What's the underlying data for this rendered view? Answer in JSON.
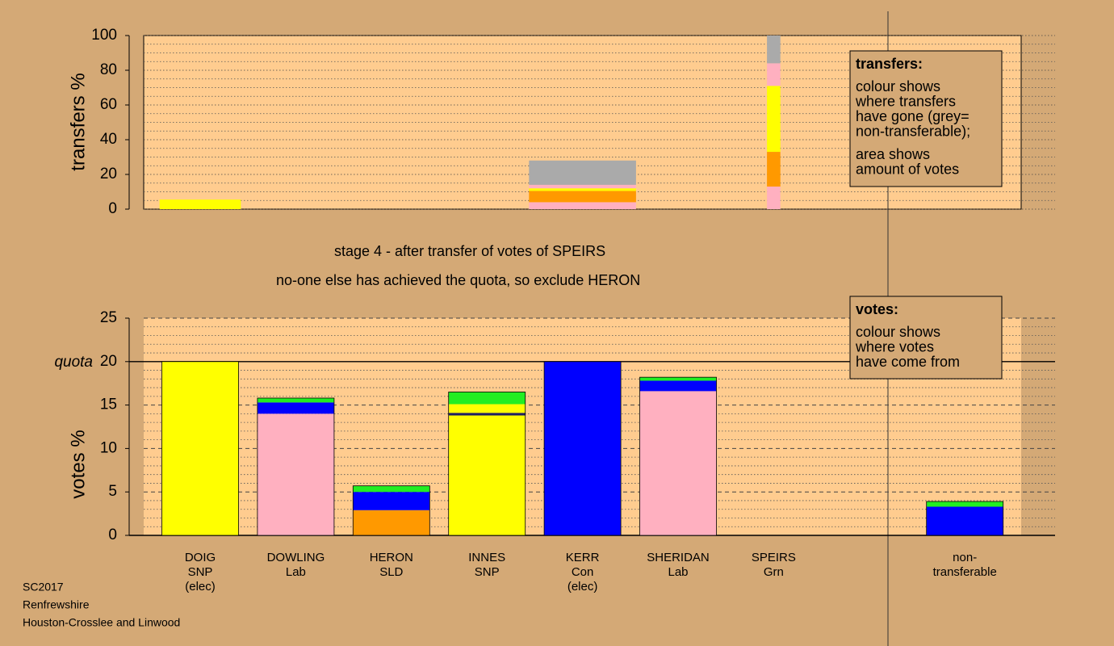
{
  "chart_data": [
    {
      "type": "bar",
      "ylabel": "transfers %",
      "ylim": [
        0,
        100
      ],
      "yticks": [
        0,
        20,
        40,
        60,
        80,
        100
      ],
      "minor_yticks": [
        5,
        10,
        15,
        25,
        30,
        35,
        45,
        50,
        55,
        65,
        70,
        75,
        85,
        90,
        95
      ],
      "legend_title": "transfers:",
      "legend_lines": [
        [
          "colour shows",
          "where transfers",
          "have gone (grey=",
          "non-transferable);"
        ],
        [
          "area shows",
          "amount of votes"
        ]
      ],
      "stacks": [
        {
          "width": 0.85,
          "segments": [
            {
              "color": "#ffff00",
              "value": 5.5
            }
          ]
        },
        null,
        null,
        null,
        {
          "width": 1.12,
          "segments": [
            {
              "color": "#ffb0c0",
              "value": 4
            },
            {
              "color": "#ff9900",
              "value": 6.5
            },
            {
              "color": "#ffff00",
              "value": 1.5
            },
            {
              "color": "#ffb0c0",
              "value": 2
            },
            {
              "color": "#aaaaaa",
              "value": 14
            }
          ]
        },
        null,
        {
          "width": 0.14,
          "segments": [
            {
              "color": "#ffb0c0",
              "value": 13
            },
            {
              "color": "#ff9900",
              "value": 20
            },
            {
              "color": "#ffff00",
              "value": 38
            },
            {
              "color": "#ffb0c0",
              "value": 13
            },
            {
              "color": "#aaaaaa",
              "value": 16
            }
          ]
        },
        null,
        null
      ]
    },
    {
      "type": "bar",
      "title": "stage 4 - after transfer of votes of SPEIRS",
      "subtitle": "no-one else has achieved the quota, so exclude HERON",
      "ylabel": "votes %",
      "ylim": [
        0,
        25
      ],
      "yticks": [
        0,
        5,
        10,
        15,
        20,
        25
      ],
      "minor_yticks": [
        1,
        2,
        3,
        4,
        6,
        7,
        8,
        9,
        11,
        12,
        13,
        14,
        16,
        17,
        18,
        19,
        21,
        22,
        23,
        24
      ],
      "quota": {
        "value": 20,
        "label": "quota"
      },
      "legend_title": "votes:",
      "legend_lines": [
        [
          "colour shows",
          "where votes",
          "have come from"
        ]
      ],
      "categories": [
        [
          "DOIG",
          "SNP",
          "(elec)"
        ],
        [
          "DOWLING",
          "Lab"
        ],
        [
          "HERON",
          "SLD"
        ],
        [
          "INNES",
          "SNP"
        ],
        [
          "KERR",
          "Con",
          "(elec)"
        ],
        [
          "SHERIDAN",
          "Lab"
        ],
        [
          "SPEIRS",
          "Grn"
        ],
        null,
        [
          "non-",
          "transferable"
        ]
      ],
      "stacks": [
        {
          "segments": [
            {
              "color": "#ffff00",
              "value": 20
            }
          ]
        },
        {
          "segments": [
            {
              "color": "#ffb0c0",
              "value": 14
            },
            {
              "color": "#0000ff",
              "value": 1.3
            },
            {
              "color": "#22ee22",
              "value": 0.5
            }
          ]
        },
        {
          "segments": [
            {
              "color": "#ff9900",
              "value": 2.9
            },
            {
              "color": "#0000ff",
              "value": 2.1
            },
            {
              "color": "#22ee22",
              "value": 0.7
            }
          ]
        },
        {
          "segments": [
            {
              "color": "#ffff00",
              "value": 13.8
            },
            {
              "color": "#202060",
              "value": 0.3
            },
            {
              "color": "#ffff00",
              "value": 1
            },
            {
              "color": "#22ee22",
              "value": 1.4
            }
          ]
        },
        {
          "segments": [
            {
              "color": "#0000ff",
              "value": 20
            }
          ]
        },
        {
          "segments": [
            {
              "color": "#ffb0c0",
              "value": 16.6
            },
            {
              "color": "#0000ff",
              "value": 1.2
            },
            {
              "color": "#22ee22",
              "value": 0.4
            }
          ]
        },
        {
          "segments": [
            {
              "color": "#22ee22",
              "value": 0
            }
          ]
        },
        null,
        {
          "segments": [
            {
              "color": "#0000ff",
              "value": 3.3
            },
            {
              "color": "#22ee22",
              "value": 0.6
            }
          ]
        }
      ]
    }
  ],
  "footer": [
    "SC2017",
    "Renfrewshire",
    "Houston-Crosslee and Linwood"
  ]
}
